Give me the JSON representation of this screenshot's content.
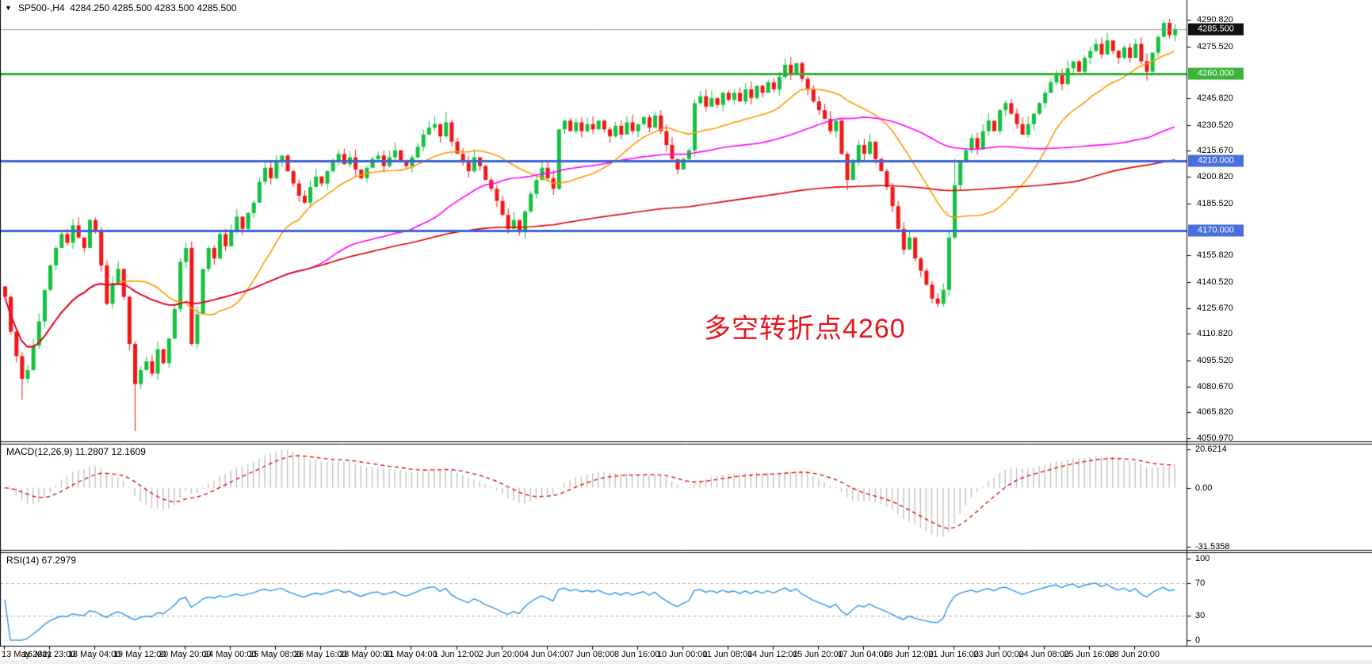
{
  "header": {
    "symbol_timeframe": "SP500-,H4",
    "ohlc_text": "4284.250 4285.500 4283.500 4285.500",
    "dropdown_icon": "▼"
  },
  "indicators": {
    "macd_label": "MACD(12,26,9) 11.2807 12.1609",
    "rsi_label": "RSI(14) 67.2979"
  },
  "annotation": {
    "text": "多空转折点4260",
    "color": "#e8141e"
  },
  "colors": {
    "candle_up": "#12c23e",
    "candle_down": "#f21616",
    "ma_fast": "#ff9900",
    "ma_mid": "#ff00ff",
    "ma_slow": "#dd0000",
    "level_green": "#35b135",
    "level_blue": "#3c64d8",
    "current_price_line": "#909090",
    "macd_histogram": "#bebebe",
    "macd_signal": "#e00000",
    "rsi_line": "#3296e4",
    "rsi_guides": "#b0b0b0",
    "axis_border": "#000000",
    "tag_black": "#111111",
    "tag_green": "#3cb43c",
    "tag_blue": "#4a6edc"
  },
  "chart_data": {
    "type": "candlestick",
    "symbol": "SP500-",
    "timeframe": "H4",
    "title": "SP500-,H4 4284.250 4285.500 4283.500 4285.500",
    "last_bar": {
      "open": 4284.25,
      "high": 4285.5,
      "low": 4283.5,
      "close": 4285.5
    },
    "price_axis": {
      "max": 4290.82,
      "min": 4050.97,
      "ticks": [
        "4290.820",
        "4275.520",
        "4245.820",
        "4230.520",
        "4215.670",
        "4200.820",
        "4185.520",
        "4155.820",
        "4140.520",
        "4125.670",
        "4110.820",
        "4095.520",
        "4080.670",
        "4065.820",
        "4050.970"
      ],
      "tick_values": [
        4290.82,
        4275.52,
        4245.82,
        4230.52,
        4215.67,
        4200.82,
        4185.52,
        4155.82,
        4140.52,
        4125.67,
        4110.82,
        4095.52,
        4080.67,
        4065.82,
        4050.97
      ]
    },
    "price_tags": [
      {
        "text": "4285.500",
        "price": 4285.5,
        "bg": "tag_black"
      },
      {
        "text": "4260.000",
        "price": 4260.0,
        "bg": "tag_green"
      },
      {
        "text": "4210.000",
        "price": 4210.0,
        "bg": "tag_blue"
      },
      {
        "text": "4170.000",
        "price": 4170.0,
        "bg": "tag_blue"
      }
    ],
    "levels": [
      {
        "price": 4285.5,
        "color": "current_price_line",
        "width": 1
      },
      {
        "price": 4260.0,
        "color": "level_green",
        "width": 3
      },
      {
        "price": 4210.0,
        "color": "level_blue",
        "width": 3
      },
      {
        "price": 4170.0,
        "color": "level_blue",
        "width": 3
      }
    ],
    "x_labels": [
      "13 May 2021",
      "16 May 23:00",
      "18 May 04:00",
      "19 May 12:00",
      "20 May 20:00",
      "24 May 00:00",
      "25 May 08:00",
      "26 May 16:00",
      "28 May 00:00",
      "31 May 04:00",
      "1 Jun 12:00",
      "2 Jun 20:00",
      "4 Jun 04:00",
      "7 Jun 08:00",
      "8 Jun 16:00",
      "10 Jun 00:00",
      "11 Jun 08:00",
      "14 Jun 12:00",
      "15 Jun 20:00",
      "17 Jun 04:00",
      "18 Jun 12:00",
      "21 Jun 16:00",
      "23 Jun 00:00",
      "24 Jun 08:00",
      "25 Jun 16:00",
      "28 Jun 20:00"
    ],
    "bars_per_label": 8,
    "open_first": 4138,
    "closes": [
      4132,
      4112,
      4098,
      4085,
      4090,
      4104,
      4118,
      4136,
      4150,
      4160,
      4168,
      4163,
      4173,
      4166,
      4160,
      4176,
      4170,
      4150,
      4128,
      4140,
      4148,
      4132,
      4105,
      4082,
      4090,
      4095,
      4088,
      4102,
      4094,
      4108,
      4125,
      4152,
      4160,
      4105,
      4122,
      4148,
      4160,
      4154,
      4168,
      4161,
      4170,
      4178,
      4171,
      4180,
      4186,
      4198,
      4206,
      4200,
      4209,
      4213,
      4204,
      4197,
      4190,
      4186,
      4195,
      4201,
      4197,
      4204,
      4210,
      4214,
      4208,
      4212,
      4205,
      4200,
      4206,
      4211,
      4213,
      4207,
      4212,
      4216,
      4210,
      4207,
      4212,
      4218,
      4225,
      4229,
      4231,
      4224,
      4232,
      4221,
      4214,
      4209,
      4204,
      4212,
      4207,
      4199,
      4194,
      4187,
      4179,
      4171,
      4176,
      4169,
      4181,
      4191,
      4199,
      4206,
      4200,
      4194,
      4228,
      4233,
      4227,
      4232,
      4227,
      4231,
      4228,
      4233,
      4228,
      4224,
      4230,
      4225,
      4232,
      4227,
      4231,
      4235,
      4229,
      4236,
      4227,
      4219,
      4211,
      4205,
      4211,
      4216,
      4243,
      4247,
      4241,
      4246,
      4242,
      4249,
      4245,
      4249,
      4244,
      4251,
      4246,
      4253,
      4249,
      4255,
      4251,
      4258,
      4265,
      4259,
      4266,
      4257,
      4251,
      4244,
      4239,
      4234,
      4227,
      4233,
      4214,
      4199,
      4209,
      4219,
      4214,
      4221,
      4211,
      4204,
      4195,
      4184,
      4171,
      4159,
      4166,
      4154,
      4147,
      4139,
      4131,
      4128,
      4136,
      4166,
      4196,
      4209,
      4216,
      4223,
      4217,
      4227,
      4233,
      4227,
      4239,
      4243,
      4237,
      4231,
      4225,
      4231,
      4237,
      4243,
      4249,
      4255,
      4259,
      4254,
      4263,
      4267,
      4261,
      4269,
      4273,
      4277,
      4271,
      4279,
      4273,
      4269,
      4275,
      4269,
      4277,
      4267,
      4261,
      4272,
      4281,
      4289,
      4282,
      4285.5
    ],
    "spikes": [
      {
        "i": 3,
        "low": 4073
      },
      {
        "i": 23,
        "low": 4055
      },
      {
        "i": 78,
        "high": 4238
      },
      {
        "i": 138,
        "high": 4268
      },
      {
        "i": 149,
        "low": 4193
      },
      {
        "i": 165,
        "low": 4126
      },
      {
        "i": 168,
        "high": 4211
      },
      {
        "i": 202,
        "low": 4256
      },
      {
        "i": 205,
        "high": 4290.8
      }
    ],
    "moving_averages": [
      {
        "period": 20,
        "color": "ma_fast",
        "width": 1.6
      },
      {
        "period": 55,
        "color": "ma_mid",
        "width": 1.6
      },
      {
        "period": 190,
        "color": "ma_slow",
        "width": 1.6
      }
    ],
    "macd": {
      "params": [
        12,
        26,
        9
      ],
      "last_macd": 11.2807,
      "last_signal": 12.1609,
      "axis_ticks": [
        "20.6214",
        "0.00",
        "-31.5358"
      ],
      "axis_tick_values": [
        20.6214,
        0,
        -31.5358
      ]
    },
    "rsi": {
      "period": 14,
      "last": 67.2979,
      "axis_ticks": [
        "100",
        "70",
        "30",
        "0"
      ],
      "axis_tick_values": [
        100,
        70,
        30,
        0
      ],
      "guide_levels": [
        70,
        30
      ]
    }
  }
}
